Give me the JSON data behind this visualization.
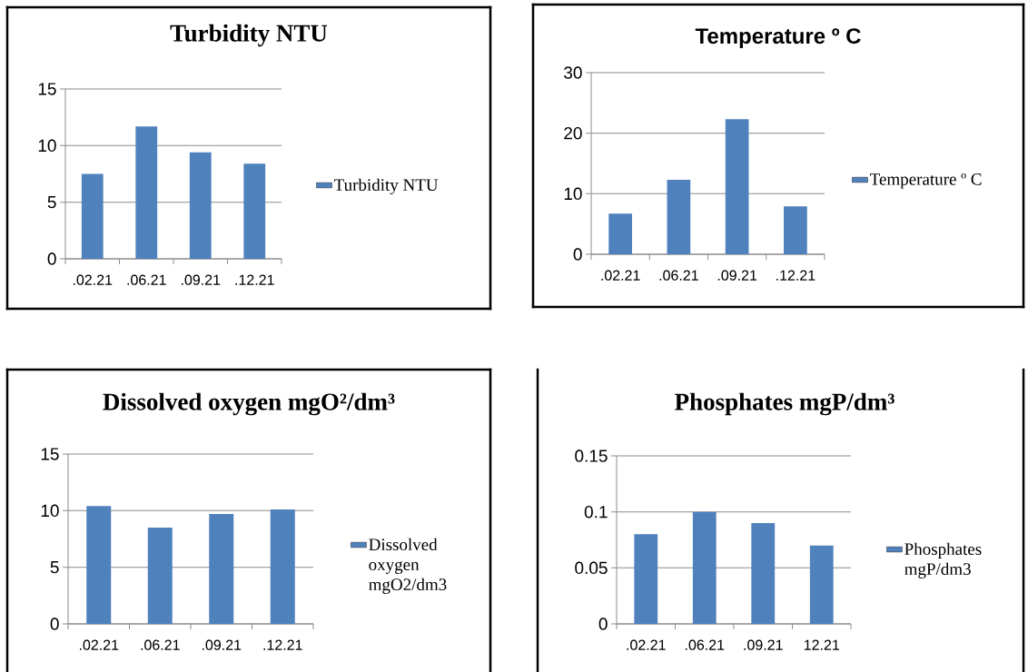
{
  "chart_data": [
    {
      "type": "bar",
      "title": "Turbidity NTU",
      "categories": [
        ".02.21",
        ".06.21",
        ".09.21",
        ".12.21"
      ],
      "series": [
        {
          "name": "Turbidity NTU",
          "color": "#4f81bd",
          "values": [
            7.5,
            11.7,
            9.4,
            8.4
          ]
        }
      ],
      "ylim": [
        0,
        15
      ],
      "yticks": [
        0,
        5,
        10,
        15
      ],
      "grid": "y",
      "legend": "right"
    },
    {
      "type": "bar",
      "title": "Temperature º C",
      "categories": [
        ".02.21",
        ".06.21",
        ".09.21",
        ".12.21"
      ],
      "series": [
        {
          "name": "Temperature º C",
          "color": "#4f81bd",
          "values": [
            6.7,
            12.3,
            22.3,
            7.9
          ]
        }
      ],
      "ylim": [
        0,
        30
      ],
      "yticks": [
        0,
        10,
        20,
        30
      ],
      "grid": "y",
      "legend": "right"
    },
    {
      "type": "bar",
      "title": "Dissolved oxygen mgO²/dm³",
      "categories": [
        ".02.21",
        ".06.21",
        ".09.21",
        ".12.21"
      ],
      "series": [
        {
          "name": "Dissolved oxygen mgO2/dm3",
          "color": "#4f81bd",
          "values": [
            10.4,
            8.5,
            9.7,
            10.1
          ]
        }
      ],
      "ylim": [
        0,
        15
      ],
      "yticks": [
        0,
        5,
        10,
        15
      ],
      "grid": "y",
      "legend": "right"
    },
    {
      "type": "bar",
      "title": "Phosphates mgP/dm³",
      "categories": [
        ".02.21",
        ".06.21",
        ".09.21",
        "12.21"
      ],
      "series": [
        {
          "name": "Phosphates mgP/dm3",
          "color": "#4f81bd",
          "values": [
            0.08,
            0.1,
            0.09,
            0.07
          ]
        }
      ],
      "ylim": [
        0,
        0.15
      ],
      "yticks": [
        0,
        0.05,
        0.1,
        0.15
      ],
      "grid": "y",
      "legend": "right"
    }
  ]
}
